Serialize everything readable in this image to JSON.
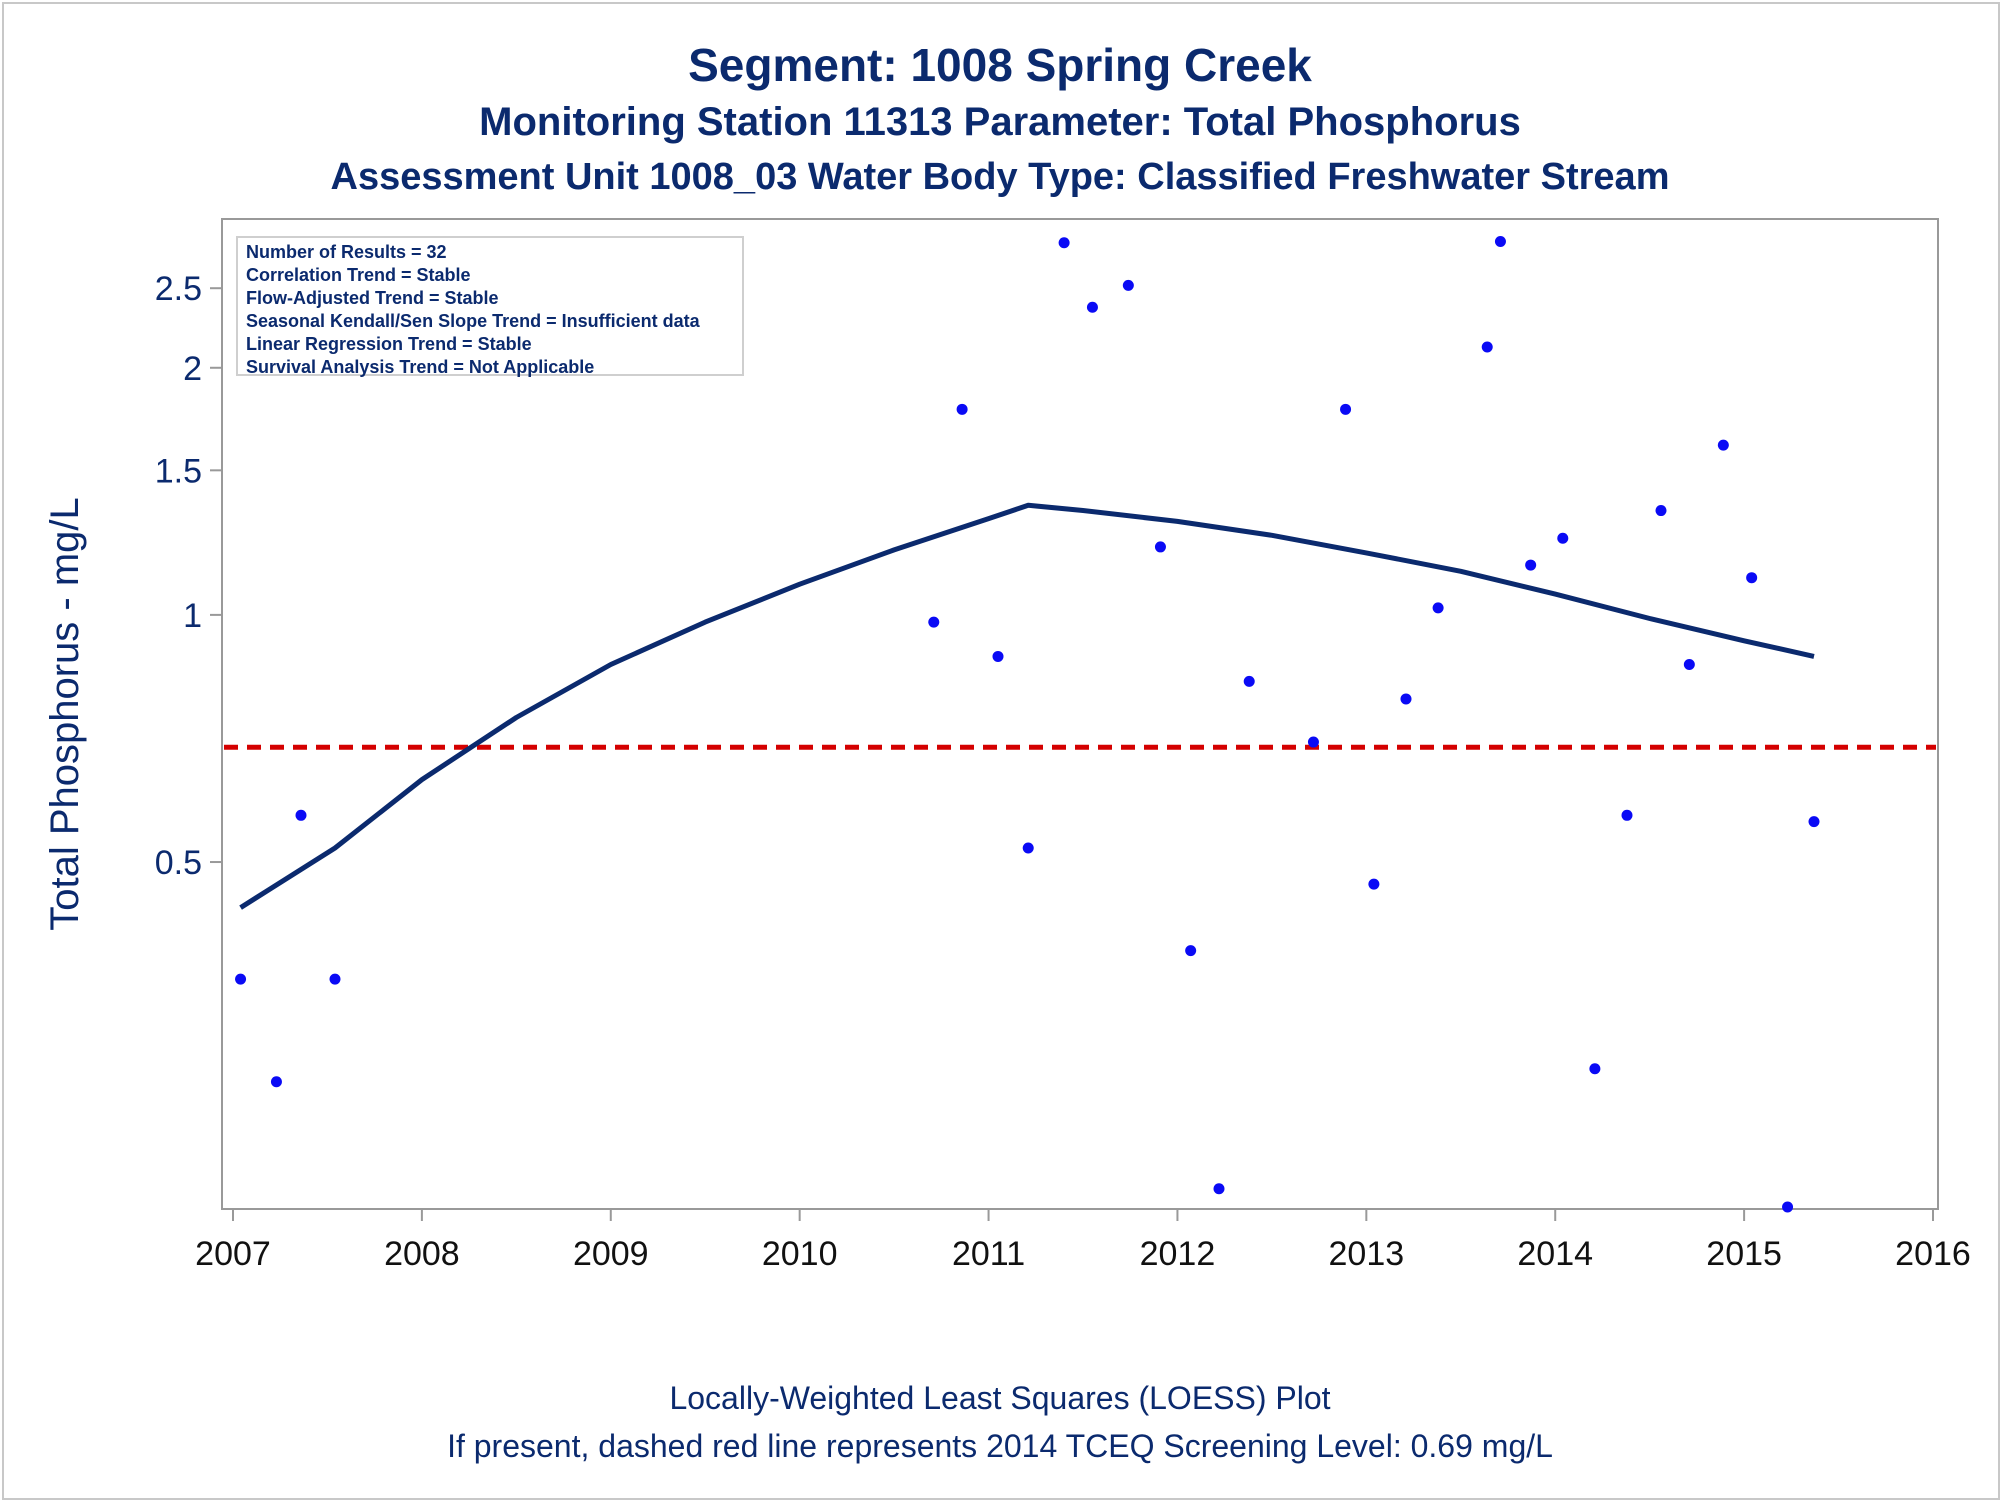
{
  "chart_data": {
    "type": "scatter",
    "title": "Segment: 1008  Spring Creek",
    "subtitle": "Monitoring Station 11313 Parameter: Total Phosphorus",
    "subtitle2": "Assessment Unit 1008_03   Water Body Type: Classified Freshwater Stream",
    "xlabel": "",
    "ylabel": "Total Phosphorus - mg/L",
    "footnote1": "Locally-Weighted Least Squares (LOESS) Plot",
    "footnote2": "If present, dashed red line represents 2014 TCEQ Screening Level: 0.69 mg/L",
    "x_ticks": [
      "2007",
      "2008",
      "2009",
      "2010",
      "2011",
      "2012",
      "2013",
      "2014",
      "2015",
      "2016"
    ],
    "y_ticks": [
      "0.5",
      "1",
      "1.5",
      "2",
      "2.5"
    ],
    "xlim": [
      2007,
      2016
    ],
    "yscale": "log",
    "ylim": [
      0.19,
      2.87
    ],
    "legend": {
      "placement": "top-left",
      "lines": [
        "Number of Results = 32",
        "Correlation Trend = Stable",
        "Flow-Adjusted Trend = Stable",
        "Seasonal Kendall/Sen Slope Trend = Insufficient data",
        "Linear Regression Trend = Stable",
        "Survival Analysis Trend = Not Applicable"
      ]
    },
    "screening_level": 0.69,
    "colors": {
      "points": "#0a0af5",
      "loess": "#0b2a6e",
      "screening": "#d40000",
      "text": "#0b2a6e",
      "axis": "#999999"
    },
    "points": [
      {
        "x": 2007.04,
        "y": 0.36
      },
      {
        "x": 2007.23,
        "y": 0.27
      },
      {
        "x": 2007.36,
        "y": 0.57
      },
      {
        "x": 2007.54,
        "y": 0.36
      },
      {
        "x": 2010.71,
        "y": 0.98
      },
      {
        "x": 2010.86,
        "y": 1.78
      },
      {
        "x": 2011.05,
        "y": 0.89
      },
      {
        "x": 2011.21,
        "y": 0.52
      },
      {
        "x": 2011.4,
        "y": 2.84
      },
      {
        "x": 2011.55,
        "y": 2.37
      },
      {
        "x": 2011.74,
        "y": 2.52
      },
      {
        "x": 2011.91,
        "y": 1.21
      },
      {
        "x": 2012.07,
        "y": 0.39
      },
      {
        "x": 2012.22,
        "y": 0.2
      },
      {
        "x": 2012.38,
        "y": 0.83
      },
      {
        "x": 2012.72,
        "y": 0.7
      },
      {
        "x": 2012.89,
        "y": 1.78
      },
      {
        "x": 2013.04,
        "y": 0.47
      },
      {
        "x": 2013.21,
        "y": 0.79
      },
      {
        "x": 2013.38,
        "y": 1.02
      },
      {
        "x": 2013.64,
        "y": 2.12
      },
      {
        "x": 2013.71,
        "y": 2.85
      },
      {
        "x": 2013.87,
        "y": 1.15
      },
      {
        "x": 2014.04,
        "y": 1.24
      },
      {
        "x": 2014.21,
        "y": 0.28
      },
      {
        "x": 2014.38,
        "y": 0.57
      },
      {
        "x": 2014.56,
        "y": 1.34
      },
      {
        "x": 2014.71,
        "y": 0.87
      },
      {
        "x": 2014.89,
        "y": 1.61
      },
      {
        "x": 2015.04,
        "y": 1.11
      },
      {
        "x": 2015.23,
        "y": 0.19
      },
      {
        "x": 2015.37,
        "y": 0.56
      }
    ],
    "loess": [
      {
        "x": 2007.04,
        "y": 0.44
      },
      {
        "x": 2007.54,
        "y": 0.52
      },
      {
        "x": 2008.0,
        "y": 0.63
      },
      {
        "x": 2008.5,
        "y": 0.75
      },
      {
        "x": 2009.0,
        "y": 0.87
      },
      {
        "x": 2009.5,
        "y": 0.98
      },
      {
        "x": 2010.0,
        "y": 1.09
      },
      {
        "x": 2010.5,
        "y": 1.2
      },
      {
        "x": 2011.0,
        "y": 1.31
      },
      {
        "x": 2011.21,
        "y": 1.36
      },
      {
        "x": 2011.5,
        "y": 1.34
      },
      {
        "x": 2012.0,
        "y": 1.3
      },
      {
        "x": 2012.5,
        "y": 1.25
      },
      {
        "x": 2013.0,
        "y": 1.19
      },
      {
        "x": 2013.5,
        "y": 1.13
      },
      {
        "x": 2014.0,
        "y": 1.06
      },
      {
        "x": 2014.5,
        "y": 0.99
      },
      {
        "x": 2015.0,
        "y": 0.93
      },
      {
        "x": 2015.37,
        "y": 0.89
      }
    ]
  }
}
